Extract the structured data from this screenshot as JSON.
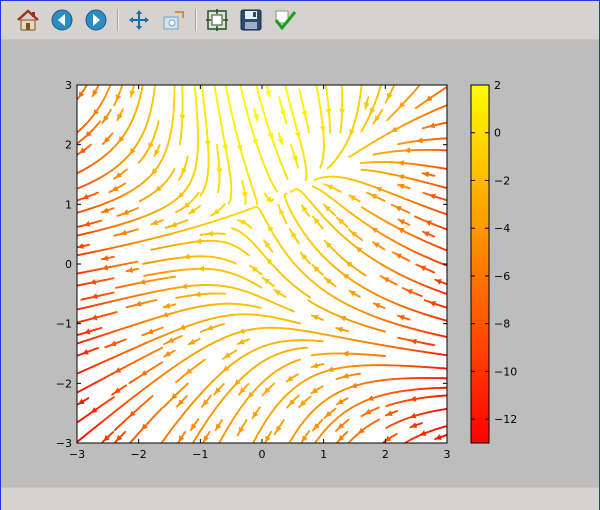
{
  "toolbar": {
    "buttons": [
      {
        "name": "home-icon"
      },
      {
        "name": "back-icon"
      },
      {
        "name": "forward-icon"
      },
      {
        "name": "pan-icon"
      },
      {
        "name": "zoom-icon"
      },
      {
        "name": "subplots-icon"
      },
      {
        "name": "save-icon"
      },
      {
        "name": "check-icon"
      }
    ]
  },
  "colors": {
    "window_border": "#1a3bd6",
    "toolbar_bg": "#d6d2d0",
    "figure_bg": "#bdbdbd",
    "plot_bg": "#ffffff",
    "colormap": [
      "#ff0000",
      "#ff8000",
      "#ffff00"
    ]
  },
  "chart_data": {
    "type": "streamplot",
    "title": "",
    "xlabel": "",
    "ylabel": "",
    "xlim": [
      -3,
      3
    ],
    "ylim": [
      -3,
      3
    ],
    "grid": false,
    "field": {
      "U": "-1 - x^2 + y",
      "V": "1 + x - y^2",
      "color": "U"
    },
    "x_ticks": [
      "-3",
      "-2",
      "-1",
      "0",
      "1",
      "2",
      "3"
    ],
    "y_ticks": [
      "-3",
      "-2",
      "-1",
      "0",
      "1",
      "2",
      "3"
    ],
    "colorbar": {
      "colormap": "autumn",
      "range": [
        -13,
        2
      ],
      "ticks": [
        2,
        0,
        -2,
        -4,
        -6,
        -8,
        -10,
        -12
      ],
      "tick_labels": [
        "2",
        "0",
        "−2",
        "−4",
        "−6",
        "−8",
        "−10",
        "−12"
      ]
    }
  }
}
